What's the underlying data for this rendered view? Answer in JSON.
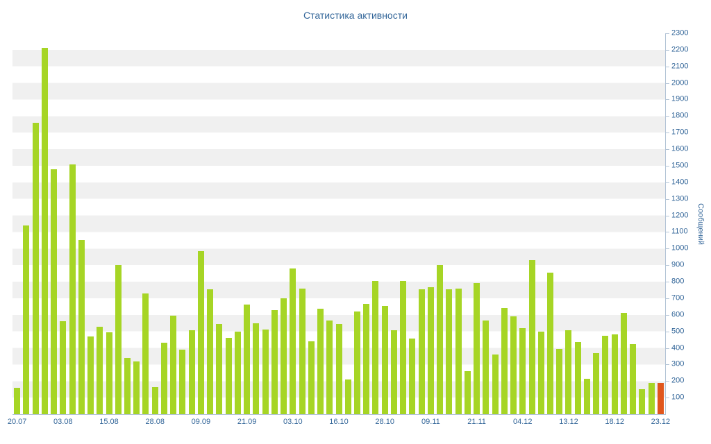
{
  "title": "Статистика активности",
  "chart_data": {
    "type": "bar",
    "title": "Статистика активности",
    "xlabel": "",
    "ylabel": "Сообщений",
    "ylim": [
      0,
      2300
    ],
    "y_tick_step": 100,
    "grid": "striped-horizontal-bands",
    "legend": "none",
    "x_tick_labels": [
      "20.07",
      "03.08",
      "15.08",
      "28.08",
      "09.09",
      "21.09",
      "03.10",
      "16.10",
      "28.10",
      "09.11",
      "21.11",
      "04.12",
      "13.12",
      "18.12",
      "23.12"
    ],
    "x_label_every": 5,
    "values": [
      160,
      1140,
      1760,
      2210,
      1480,
      560,
      1510,
      1050,
      470,
      530,
      495,
      900,
      340,
      320,
      730,
      165,
      430,
      595,
      390,
      505,
      985,
      755,
      545,
      460,
      500,
      660,
      550,
      510,
      630,
      700,
      880,
      760,
      440,
      635,
      565,
      545,
      210,
      620,
      665,
      805,
      655,
      505,
      805,
      455,
      755,
      765,
      900,
      755,
      760,
      260,
      790,
      565,
      360,
      640,
      590,
      520,
      930,
      500,
      855,
      395,
      505,
      435,
      215,
      370,
      475,
      480,
      610,
      425,
      150,
      190,
      190
    ],
    "highlight_index": 70,
    "colors": {
      "bar": "#a6d525",
      "highlight": "#e0561c",
      "stripe": "#f0f0f0",
      "stripe_alt": "#ffffff",
      "axis_line": "#b3c4d6",
      "label_text": "#336699"
    }
  }
}
